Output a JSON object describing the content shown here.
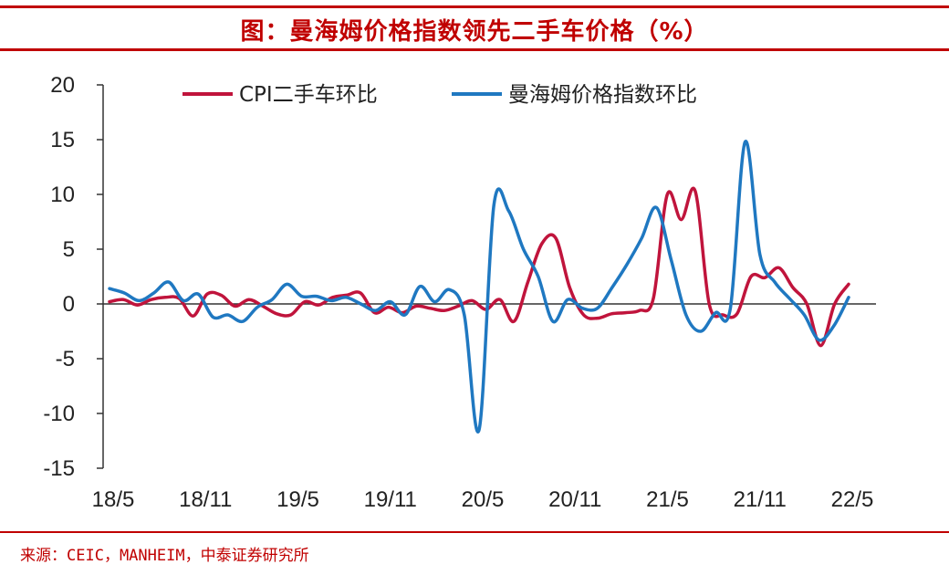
{
  "title": "图：曼海姆价格指数领先二手车价格（%）",
  "source": "来源：CEIC，MANHEIM，中泰证券研究所",
  "colors": {
    "accent": "#c00000",
    "series1": "#c0143c",
    "series2": "#1f78c1"
  },
  "chart_data": {
    "type": "line",
    "ylim": [
      -15,
      20
    ],
    "yticks": [
      "20",
      "15",
      "10",
      "5",
      "0",
      "-5",
      "-10",
      "-15"
    ],
    "xticks": [
      "18/5",
      "18/11",
      "19/5",
      "19/11",
      "20/5",
      "20/11",
      "21/5",
      "21/11",
      "22/5"
    ],
    "legend_position": "top",
    "grid": false,
    "series": [
      {
        "name": "CPI二手车环比",
        "color": "#c0143c",
        "values": [
          0.2,
          0.4,
          -0.1,
          0.4,
          0.6,
          0.5,
          -1.1,
          0.9,
          0.8,
          -0.2,
          0.4,
          -0.2,
          -0.9,
          -1.0,
          0.2,
          -0.1,
          0.6,
          0.8,
          1.0,
          -0.8,
          -0.3,
          -0.8,
          -0.2,
          -0.4,
          -0.6,
          -0.2,
          0.3,
          -0.5,
          0.4,
          -1.6,
          2.0,
          5.5,
          6.0,
          1.5,
          -1.0,
          -1.3,
          -0.9,
          -0.8,
          -0.6,
          0.5,
          10.0,
          7.7,
          10.3,
          0.0,
          -1.0,
          -0.9,
          2.5,
          2.4,
          3.3,
          1.5,
          0.0,
          -3.8,
          0.0,
          1.8
        ]
      },
      {
        "name": "曼海姆价格指数环比",
        "color": "#1f78c1",
        "values": [
          1.4,
          1.0,
          0.3,
          1.0,
          2.0,
          0.3,
          0.9,
          -1.2,
          -1.0,
          -1.6,
          -0.3,
          0.4,
          1.8,
          0.7,
          0.7,
          0.3,
          0.6,
          0.0,
          -0.6,
          0.2,
          -1.0,
          1.6,
          0.2,
          1.3,
          -1.0,
          -11.5,
          9.0,
          8.5,
          5.0,
          2.5,
          -1.6,
          0.4,
          -0.4,
          -0.4,
          1.5,
          3.6,
          6.0,
          8.8,
          4.0,
          -1.0,
          -2.5,
          -0.8,
          -0.4,
          14.8,
          4.5,
          2.0,
          0.5,
          -1.0,
          -3.3,
          -2.0,
          0.6
        ]
      }
    ]
  }
}
